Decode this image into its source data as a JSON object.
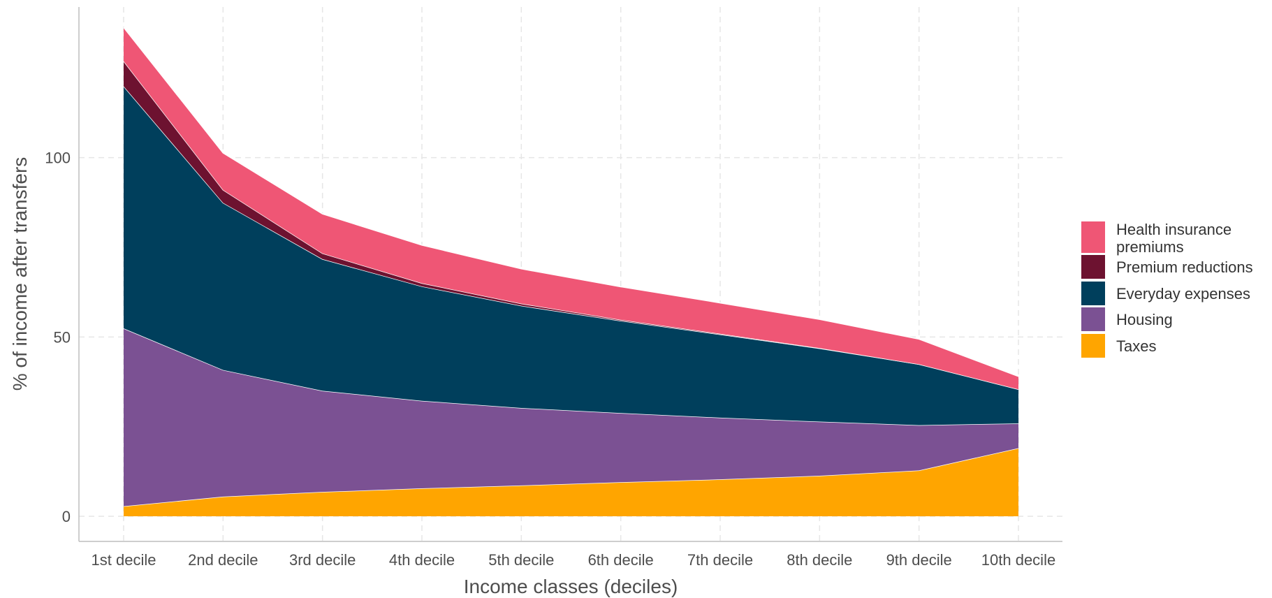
{
  "chart_data": {
    "type": "area",
    "stacked": true,
    "categories": [
      "1st decile",
      "2nd decile",
      "3rd decile",
      "4th decile",
      "5th decile",
      "6th decile",
      "7th decile",
      "8th decile",
      "9th decile",
      "10th decile"
    ],
    "series": [
      {
        "name": "Taxes",
        "color": "#FFA500",
        "values": [
          2.8,
          5.5,
          6.8,
          7.8,
          8.6,
          9.5,
          10.3,
          11.3,
          12.8,
          19.0
        ]
      },
      {
        "name": "Housing",
        "color": "#7B5193",
        "values": [
          49.6,
          35.3,
          28.2,
          24.4,
          21.6,
          19.3,
          17.2,
          15.1,
          12.6,
          6.9
        ]
      },
      {
        "name": "Everyday expenses",
        "color": "#003F5C",
        "values": [
          67.5,
          46.6,
          36.7,
          31.9,
          28.5,
          25.7,
          23.2,
          20.4,
          17.0,
          9.5
        ]
      },
      {
        "name": "Premium reductions",
        "color": "#6D1230",
        "values": [
          7.0,
          3.6,
          1.6,
          0.9,
          0.6,
          0.3,
          0.2,
          0.1,
          0.0,
          0.0
        ]
      },
      {
        "name": "Health insurance premiums",
        "color": "#EF5675",
        "values": [
          9.4,
          10.3,
          11.0,
          10.6,
          9.7,
          9.2,
          8.6,
          8.0,
          7.0,
          3.6
        ]
      }
    ],
    "xlabel": "Income classes (deciles)",
    "ylabel": "% of income after transfers",
    "ylim": [
      -7,
      142
    ],
    "yticks": [
      0,
      50,
      100
    ],
    "grid": true,
    "legend_position": "right",
    "legend_order": [
      "Health insurance premiums",
      "Premium reductions",
      "Everyday expenses",
      "Housing",
      "Taxes"
    ],
    "legend_labels": [
      [
        "Health insurance",
        "premiums"
      ],
      [
        "Premium reductions"
      ],
      [
        "Everyday expenses"
      ],
      [
        "Housing"
      ],
      [
        "Taxes"
      ]
    ]
  }
}
